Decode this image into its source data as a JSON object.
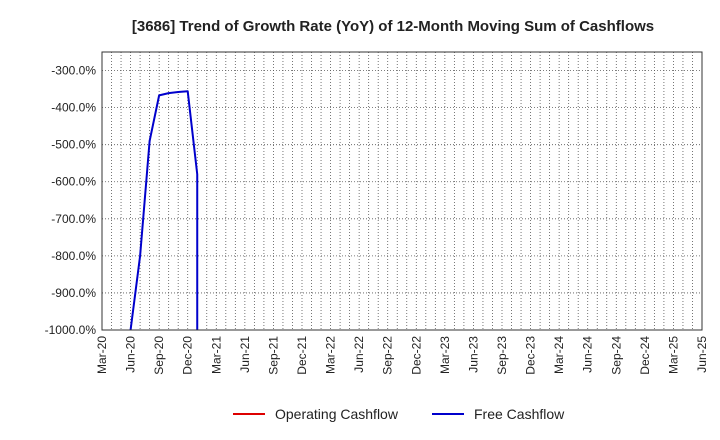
{
  "chart_data": {
    "type": "line",
    "title": "[3686]  Trend of Growth Rate (YoY) of 12-Month Moving Sum of Cashflows",
    "xlabel": "",
    "ylabel": "",
    "ylim": [
      -1000,
      -250
    ],
    "y_ticks": [
      "-300.0%",
      "-400.0%",
      "-500.0%",
      "-600.0%",
      "-700.0%",
      "-800.0%",
      "-900.0%",
      "-1000.0%"
    ],
    "y_tick_values": [
      -300,
      -400,
      -500,
      -600,
      -700,
      -800,
      -900,
      -1000
    ],
    "x_ticks": [
      "Mar-20",
      "Jun-20",
      "Sep-20",
      "Dec-20",
      "Mar-21",
      "Jun-21",
      "Sep-21",
      "Dec-21",
      "Mar-22",
      "Jun-22",
      "Sep-22",
      "Dec-22",
      "Mar-23",
      "Jun-23",
      "Sep-23",
      "Dec-23",
      "Mar-24",
      "Jun-24",
      "Sep-24",
      "Dec-24",
      "Mar-25",
      "Jun-25"
    ],
    "grid": true,
    "legend_position": "bottom",
    "series": [
      {
        "name": "Operating Cashflow",
        "color": "#dd0000",
        "points": []
      },
      {
        "name": "Free Cashflow",
        "color": "#0000cc",
        "points": [
          {
            "x": "Jun-20",
            "y": -1000
          },
          {
            "x": "Jul-20",
            "y": -800
          },
          {
            "x": "Aug-20",
            "y": -490
          },
          {
            "x": "Sep-20",
            "y": -367
          },
          {
            "x": "Oct-20",
            "y": -361
          },
          {
            "x": "Nov-20",
            "y": -358
          },
          {
            "x": "Dec-20",
            "y": -356
          },
          {
            "x": "Jan-21",
            "y": -580
          },
          {
            "x": "Jan-21",
            "y": -1000
          }
        ]
      }
    ]
  }
}
